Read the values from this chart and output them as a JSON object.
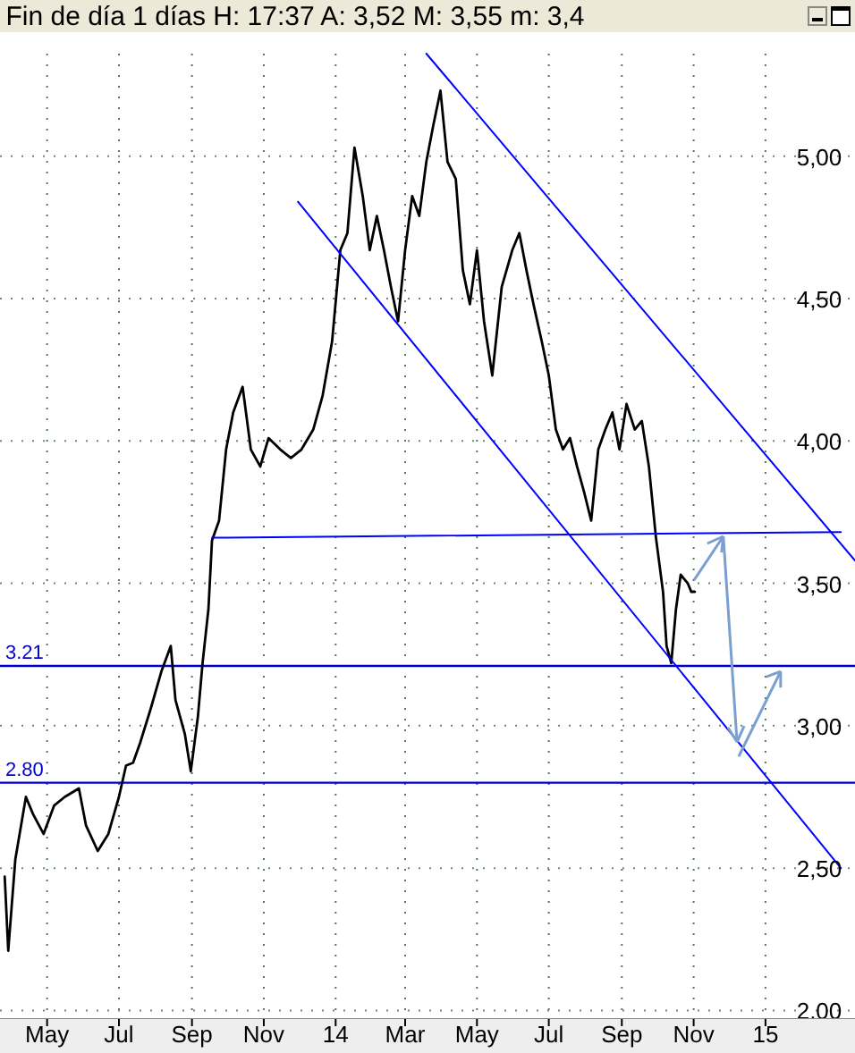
{
  "chart_data": {
    "type": "line",
    "title": "Fin de día 1 días H: 17:37 A: 3,52 M: 3,55 m: 3,4",
    "xlim": [
      "2013-03-22",
      "2015-03-18"
    ],
    "ylim": [
      1.97,
      5.36
    ],
    "xticks": [
      {
        "value": "2013-05-01",
        "label": "May"
      },
      {
        "value": "2013-07-01",
        "label": "Jul"
      },
      {
        "value": "2013-09-01",
        "label": "Sep"
      },
      {
        "value": "2013-11-01",
        "label": "Nov"
      },
      {
        "value": "2014-01-01",
        "label": "14"
      },
      {
        "value": "2014-03-01",
        "label": "Mar"
      },
      {
        "value": "2014-05-01",
        "label": "May"
      },
      {
        "value": "2014-07-01",
        "label": "Jul"
      },
      {
        "value": "2014-09-01",
        "label": "Sep"
      },
      {
        "value": "2014-11-01",
        "label": "Nov"
      },
      {
        "value": "2015-01-01",
        "label": "15"
      }
    ],
    "yticks": [
      {
        "value": 2,
        "label": "2,00"
      },
      {
        "value": 2.5,
        "label": "2,50"
      },
      {
        "value": 3,
        "label": "3,00"
      },
      {
        "value": 3.5,
        "label": "3,50"
      },
      {
        "value": 4,
        "label": "4,00"
      },
      {
        "value": 4.5,
        "label": "4,50"
      },
      {
        "value": 5,
        "label": "5,00"
      }
    ],
    "grid": true,
    "line_style": "solid",
    "series": [
      {
        "color": "#000000",
        "x": [
          "2013-03-26",
          "2013-03-29",
          "2013-04-04",
          "2013-04-13",
          "2013-04-19",
          "2013-04-28",
          "2013-05-07",
          "2013-05-16",
          "2013-05-28",
          "2013-06-03",
          "2013-06-13",
          "2013-06-22",
          "2013-07-01",
          "2013-07-07",
          "2013-07-13",
          "2013-07-19",
          "2013-07-28",
          "2013-08-06",
          "2013-08-14",
          "2013-08-18",
          "2013-08-26",
          "2013-08-31",
          "2013-09-06",
          "2013-09-10",
          "2013-09-15",
          "2013-09-18",
          "2013-09-24",
          "2013-09-30",
          "2013-10-06",
          "2013-10-14",
          "2013-10-21",
          "2013-10-29",
          "2013-11-05",
          "2013-11-15",
          "2013-11-24",
          "2013-12-03",
          "2013-12-13",
          "2013-12-21",
          "2013-12-29",
          "2014-01-05",
          "2014-01-11",
          "2014-01-17",
          "2014-01-24",
          "2014-01-30",
          "2014-02-05",
          "2014-02-11",
          "2014-02-17",
          "2014-02-23",
          "2014-03-01",
          "2014-03-07",
          "2014-03-13",
          "2014-03-19",
          "2014-03-25",
          "2014-03-31",
          "2014-04-06",
          "2014-04-13",
          "2014-04-19",
          "2014-04-25",
          "2014-05-01",
          "2014-05-07",
          "2014-05-14",
          "2014-05-22",
          "2014-05-31",
          "2014-06-06",
          "2014-06-12",
          "2014-06-18",
          "2014-06-25",
          "2014-07-01",
          "2014-07-07",
          "2014-07-13",
          "2014-07-19",
          "2014-07-25",
          "2014-07-31",
          "2014-08-06",
          "2014-08-12",
          "2014-08-18",
          "2014-08-24",
          "2014-08-30",
          "2014-09-05",
          "2014-09-12",
          "2014-09-18",
          "2014-09-24",
          "2014-09-30",
          "2014-10-06",
          "2014-10-09",
          "2014-10-13",
          "2014-10-17",
          "2014-10-21",
          "2014-10-27",
          "2014-10-30",
          "2014-11-02"
        ],
        "values": [
          2.47,
          2.21,
          2.53,
          2.75,
          2.69,
          2.62,
          2.72,
          2.75,
          2.78,
          2.65,
          2.56,
          2.62,
          2.75,
          2.86,
          2.87,
          2.94,
          3.06,
          3.19,
          3.28,
          3.09,
          2.97,
          2.84,
          3.03,
          3.22,
          3.41,
          3.65,
          3.72,
          3.97,
          4.1,
          4.19,
          3.97,
          3.91,
          4.01,
          3.97,
          3.94,
          3.97,
          4.04,
          4.16,
          4.35,
          4.67,
          4.73,
          5.03,
          4.86,
          4.67,
          4.79,
          4.67,
          4.54,
          4.42,
          4.67,
          4.86,
          4.79,
          4.98,
          5.11,
          5.23,
          4.98,
          4.92,
          4.6,
          4.48,
          4.67,
          4.42,
          4.23,
          4.54,
          4.67,
          4.73,
          4.6,
          4.48,
          4.35,
          4.23,
          4.04,
          3.97,
          4.01,
          3.91,
          3.82,
          3.72,
          3.97,
          4.04,
          4.1,
          3.97,
          4.13,
          4.04,
          4.07,
          3.91,
          3.66,
          3.47,
          3.28,
          3.22,
          3.41,
          3.53,
          3.5,
          3.47,
          3.47
        ]
      },
      {
        "color": "#0000ff",
        "x": [
          "2014-03-19",
          "2015-03-18"
        ],
        "values": [
          5.36,
          3.58
        ]
      },
      {
        "color": "#0000ff",
        "x": [
          "2013-11-30",
          "2015-03-06"
        ],
        "values": [
          4.84,
          2.5
        ]
      },
      {
        "color": "#0000ff",
        "x": [
          "2013-09-18",
          "2015-03-06"
        ],
        "values": [
          3.66,
          3.68
        ]
      }
    ],
    "ref_lines": [
      {
        "axis": "y",
        "value": 3.21,
        "label": "3.21",
        "color": "#0000cc"
      },
      {
        "axis": "y",
        "value": 2.8,
        "label": "2.80",
        "color": "#0000cc"
      }
    ]
  }
}
